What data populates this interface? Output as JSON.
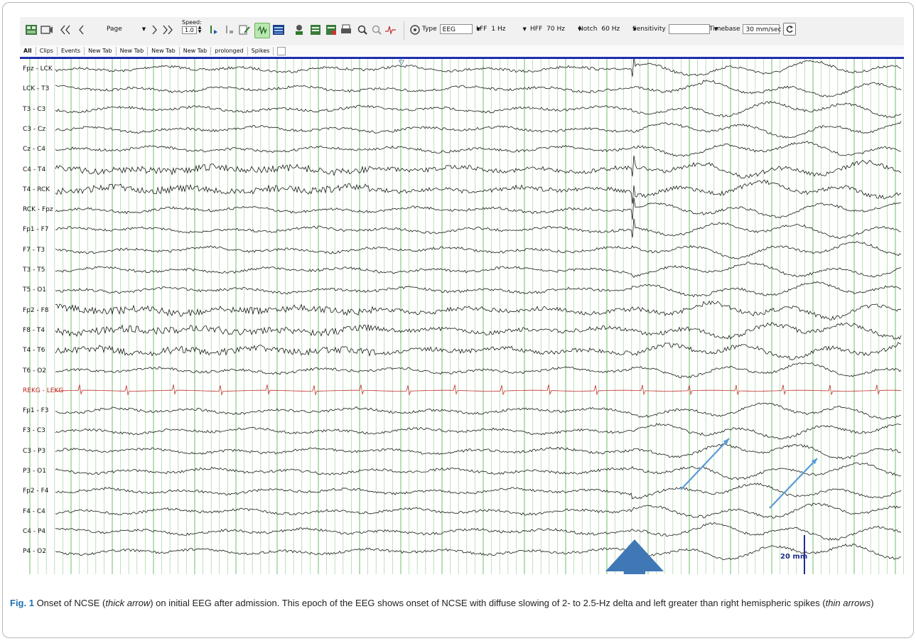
{
  "toolbar": {
    "page_label": "Page",
    "speed_label": "Speed:",
    "speed_value": "1.0",
    "type_label": "Type",
    "type_value": "EEG",
    "lff_label": "LFF",
    "lff_value": "1 Hz",
    "hff_label": "HFF",
    "hff_value": "70 Hz",
    "notch_label": "Notch",
    "notch_value": "60 Hz",
    "sensitivity_label": "Sensitivity",
    "sensitivity_value": "",
    "timebase_label": "Timebase",
    "timebase_value": "30 mm/sec"
  },
  "tabs": [
    "All",
    "Clips",
    "Events",
    "New Tab",
    "New Tab",
    "New Tab",
    "New Tab",
    "prolonged",
    "Spikes"
  ],
  "channels": [
    "Fpz - LCK",
    "LCK - T3",
    "T3 - C3",
    "C3 - Cz",
    "Cz - C4",
    "C4 - T4",
    "T4 - RCK",
    "RCK - Fpz",
    "Fp1 - F7",
    "F7 - T3",
    "T3 - T5",
    "T5 - O1",
    "Fp2 - F8",
    "F8 - T4",
    "T4 - T6",
    "T6 - O2",
    "REKG - LEKG",
    "Fp1 - F3",
    "F3 - C3",
    "C3 - P3",
    "P3 - O1",
    "Fp2 - F4",
    "F4 - C4",
    "C4 - P4",
    "P4 - O2"
  ],
  "ekg_channel_index": 16,
  "scale_label": "20 mm",
  "caption": {
    "fig": "Fig. 1",
    "t1": " Onset of NCSE (",
    "i1": "thick arrow",
    "t2": ") on initial EEG after admission. This epoch of the EEG shows onset of NCSE with diffuse slowing of 2- to 2.5-Hz delta and left greater than right hemispheric spikes (",
    "i2": "thin arrows",
    "t3": ")"
  },
  "colors": {
    "trace": "#1a1a1a",
    "ekg": "#c0302a",
    "grid": "#9fd59a",
    "grid_major": "#6fbf68",
    "top_bar": "#1d2fae",
    "arrow": "#3f78b5",
    "thin_arrow": "#5b9bd8",
    "scale": "#1d2f8e",
    "caption_fig": "#1f6fb1"
  },
  "icons": {
    "first_page": "double-left-arrow-icon",
    "prev_page": "left-arrow-icon",
    "next_page": "right-arrow-icon",
    "last_page": "double-right-arrow-icon",
    "zoom_in": "zoom-in-icon",
    "zoom_out": "zoom-out-icon",
    "refresh": "refresh-icon"
  }
}
